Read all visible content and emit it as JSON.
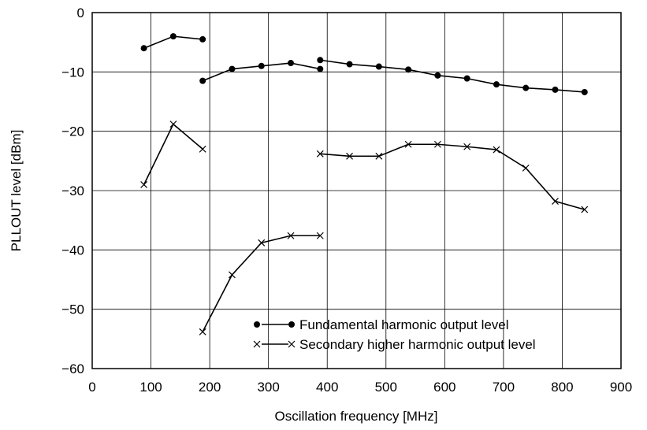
{
  "chart_data": {
    "type": "line",
    "xlabel": "Oscillation frequency [MHz]",
    "ylabel": "PLLOUT level [dBm]",
    "xlim": [
      0,
      900
    ],
    "ylim": [
      -60,
      0
    ],
    "xticks": [
      0,
      100,
      200,
      300,
      400,
      500,
      600,
      700,
      800,
      900
    ],
    "yticks": [
      0,
      -10,
      -20,
      -30,
      -40,
      -50,
      -60
    ],
    "xtick_labels": [
      "0",
      "100",
      "200",
      "300",
      "400",
      "500",
      "600",
      "700",
      "800",
      "900"
    ],
    "ytick_labels": [
      "0",
      "−10",
      "−20",
      "−30",
      "−40",
      "−50",
      "−60"
    ],
    "grid": true,
    "legend_position": "bottom-center",
    "series": [
      {
        "name": "Fundamental harmonic output level",
        "marker": "filled-circle",
        "color": "#000000",
        "segments": [
          [
            [
              88,
              -6.0
            ],
            [
              138,
              -4.0
            ],
            [
              188,
              -4.5
            ]
          ],
          [
            [
              188,
              -11.5
            ],
            [
              238,
              -9.5
            ],
            [
              288,
              -9.0
            ],
            [
              338,
              -8.5
            ],
            [
              388,
              -9.5
            ]
          ],
          [
            [
              388,
              -8.0
            ],
            [
              438,
              -8.7
            ],
            [
              488,
              -9.1
            ],
            [
              538,
              -9.6
            ],
            [
              588,
              -10.6
            ],
            [
              638,
              -11.1
            ],
            [
              688,
              -12.1
            ],
            [
              738,
              -12.7
            ],
            [
              788,
              -13.0
            ],
            [
              838,
              -13.4
            ]
          ]
        ]
      },
      {
        "name": "Secondary higher harmonic output level",
        "marker": "x",
        "color": "#000000",
        "segments": [
          [
            [
              88,
              -29.0
            ],
            [
              138,
              -18.8
            ],
            [
              188,
              -23.0
            ]
          ],
          [
            [
              188,
              -53.8
            ],
            [
              238,
              -44.2
            ],
            [
              288,
              -38.8
            ],
            [
              338,
              -37.6
            ],
            [
              388,
              -37.6
            ]
          ],
          [
            [
              388,
              -23.8
            ],
            [
              438,
              -24.2
            ],
            [
              488,
              -24.2
            ],
            [
              538,
              -22.2
            ],
            [
              588,
              -22.2
            ],
            [
              638,
              -22.6
            ],
            [
              688,
              -23.1
            ],
            [
              738,
              -26.2
            ],
            [
              788,
              -31.8
            ],
            [
              838,
              -33.2
            ]
          ]
        ]
      }
    ]
  }
}
